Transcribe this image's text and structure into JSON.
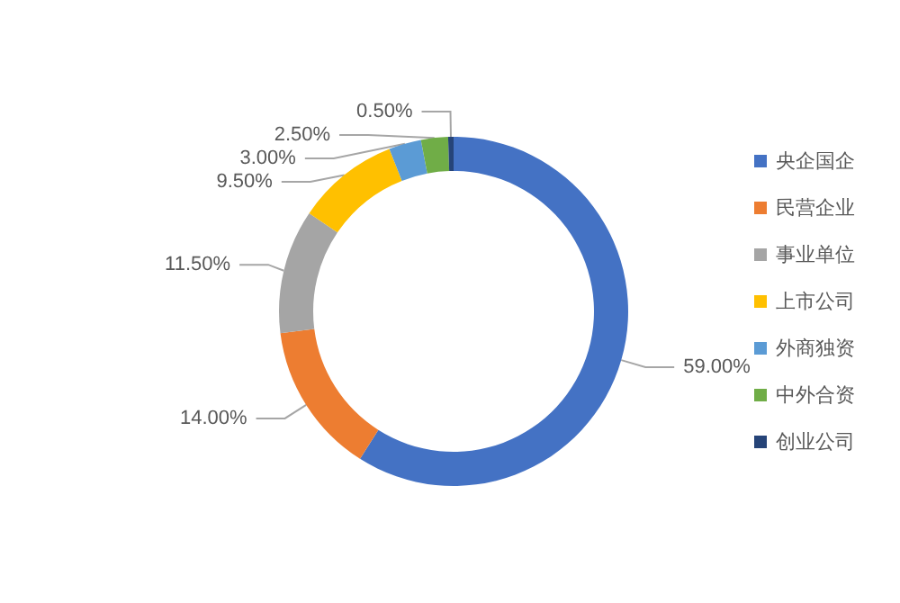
{
  "chart_data": {
    "type": "donut",
    "categories": [
      "央企国企",
      "民营企业",
      "事业单位",
      "上市公司",
      "外商独资",
      "中外合资",
      "创业公司"
    ],
    "values": [
      59,
      14,
      11.5,
      9.5,
      3,
      2.5,
      0.5
    ],
    "colors": [
      "#4472c4",
      "#ed7d31",
      "#a5a5a5",
      "#ffc000",
      "#5b9bd5",
      "#70ad47",
      "#264478"
    ],
    "value_labels": [
      "59.00%",
      "14.00%",
      "11.50%",
      "9.50%",
      "3.00%",
      "2.50%",
      "0.50%"
    ],
    "legend": "right"
  }
}
